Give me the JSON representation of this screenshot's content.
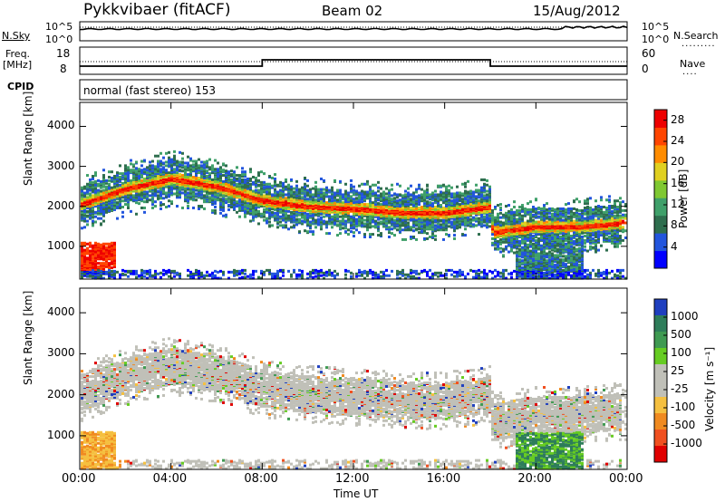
{
  "header": {
    "station": "Pykkvibaer (fitACF)",
    "beam": "Beam 02",
    "date": "15/Aug/2012",
    "cpid_text": "normal (fast stereo) 153"
  },
  "small_panels": {
    "nsky_label": "N.Sky",
    "nsearch_label": "N.Search",
    "freq_label": "Freq.",
    "freq_unit": "[MHz]",
    "nave_label": "Nave",
    "cpid_label": "CPID",
    "noise_ticks": [
      "10^5",
      "10^0"
    ],
    "freq_ticks": [
      "18",
      "8"
    ],
    "nave_ticks": [
      "60",
      "0"
    ]
  },
  "chart_data": [
    {
      "type": "heatmap",
      "title": "",
      "ylabel": "Slant Range [km]",
      "xlabel": "",
      "x_ticks": [
        "00:00",
        "04:00",
        "08:00",
        "12:00",
        "16:00",
        "20:00",
        "00:00"
      ],
      "x_range_hours": [
        0,
        24
      ],
      "ylim": [
        180,
        4600
      ],
      "y_ticks": [
        1000,
        2000,
        3000,
        4000
      ],
      "colorbar": {
        "label": "Power [dB]",
        "tick_labels": [
          "4",
          "8",
          "12",
          "16",
          "20",
          "24",
          "28"
        ],
        "range": [
          0,
          30
        ],
        "colors": [
          "#0000ff",
          "#2255dd",
          "#2e6e4e",
          "#3fa06a",
          "#7fc832",
          "#e0d020",
          "#ff8c00",
          "#ff4500",
          "#ee0000"
        ]
      },
      "main_echo_band": {
        "hours": [
          0,
          2,
          4,
          6,
          8,
          10,
          12,
          14,
          16,
          18,
          18.05,
          20,
          22,
          24
        ],
        "range_km": [
          2050,
          2450,
          2700,
          2500,
          2150,
          2000,
          1950,
          1850,
          1850,
          2000,
          1350,
          1500,
          1500,
          1600
        ]
      }
    },
    {
      "type": "heatmap",
      "title": "",
      "ylabel": "Slant Range [km]",
      "xlabel": "Time UT",
      "x_ticks": [
        "00:00",
        "04:00",
        "08:00",
        "12:00",
        "16:00",
        "20:00",
        "00:00"
      ],
      "x_range_hours": [
        0,
        24
      ],
      "ylim": [
        180,
        4600
      ],
      "y_ticks": [
        1000,
        2000,
        3000,
        4000
      ],
      "colorbar": {
        "label": "Velocity [m s⁻¹]",
        "tick_labels": [
          "1000",
          "500",
          "100",
          "25",
          "-25",
          "-100",
          "-500",
          "-1000"
        ],
        "colors": [
          "#1f3fbf",
          "#2e7d5a",
          "#3f9a52",
          "#66cc22",
          "#c0c0b8",
          "#c0c0b8",
          "#f5c040",
          "#f08a20",
          "#f05020",
          "#e00000"
        ]
      }
    }
  ]
}
